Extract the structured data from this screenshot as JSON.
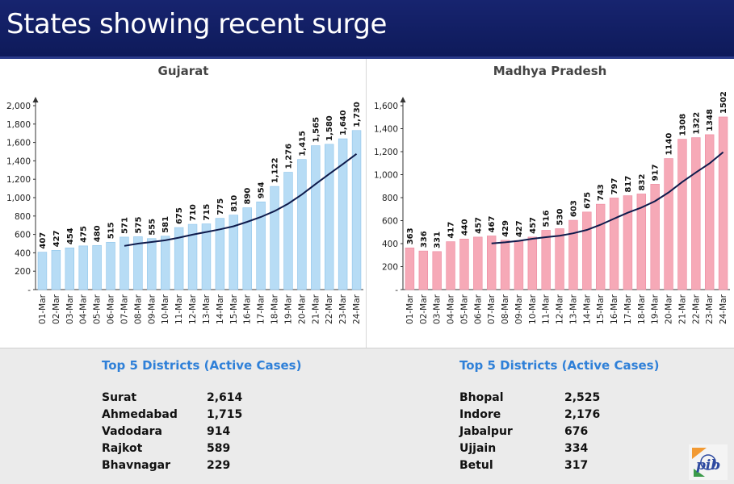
{
  "header": {
    "title": "States showing recent surge"
  },
  "chart_data": [
    {
      "type": "bar",
      "title": "Gujarat",
      "categories": [
        "01-Mar",
        "02-Mar",
        "03-Mar",
        "04-Mar",
        "05-Mar",
        "06-Mar",
        "07-Mar",
        "08-Mar",
        "09-Mar",
        "10-Mar",
        "11-Mar",
        "12-Mar",
        "13-Mar",
        "14-Mar",
        "15-Mar",
        "16-Mar",
        "17-Mar",
        "18-Mar",
        "19-Mar",
        "20-Mar",
        "21-Mar",
        "22-Mar",
        "23-Mar",
        "24-Mar"
      ],
      "values": [
        407,
        427,
        454,
        475,
        480,
        515,
        571,
        575,
        555,
        581,
        675,
        710,
        715,
        775,
        810,
        890,
        954,
        1122,
        1276,
        1415,
        1565,
        1580,
        1640,
        1730
      ],
      "data_labels": [
        "407",
        "427",
        "454",
        "475",
        "480",
        "515",
        "571",
        "575",
        "555",
        "581",
        "675",
        "710",
        "715",
        "775",
        "810",
        "890",
        "954",
        "1,122",
        "1,276",
        "1,415",
        "1,565",
        "1,580",
        "1,640",
        "1,730"
      ],
      "yticks": [
        0,
        200,
        400,
        600,
        800,
        1000,
        1200,
        1400,
        1600,
        1800,
        2000
      ],
      "ytick_labels": [
        "-",
        "200",
        "400",
        "600",
        "800",
        "1,000",
        "1,200",
        "1,400",
        "1,600",
        "1,800",
        "2,000"
      ],
      "ylim": [
        0,
        2000
      ],
      "bar_color": "#b7dcf5",
      "bar_edge": "#8ec4ea",
      "trend": {
        "type": "moving-average",
        "window": 7,
        "color": "#0f1b4c"
      }
    },
    {
      "type": "bar",
      "title": "Madhya Pradesh",
      "categories": [
        "01-Mar",
        "02-Mar",
        "03-Mar",
        "04-Mar",
        "05-Mar",
        "06-Mar",
        "07-Mar",
        "08-Mar",
        "09-Mar",
        "10-Mar",
        "11-Mar",
        "12-Mar",
        "13-Mar",
        "14-Mar",
        "15-Mar",
        "16-Mar",
        "17-Mar",
        "18-Mar",
        "19-Mar",
        "20-Mar",
        "21-Mar",
        "22-Mar",
        "23-Mar",
        "24-Mar"
      ],
      "values": [
        363,
        336,
        331,
        417,
        440,
        457,
        467,
        429,
        427,
        457,
        516,
        530,
        603,
        675,
        743,
        797,
        817,
        832,
        917,
        1140,
        1308,
        1322,
        1348,
        1502
      ],
      "data_labels": [
        "363",
        "336",
        "331",
        "417",
        "440",
        "457",
        "467",
        "429",
        "427",
        "457",
        "516",
        "530",
        "603",
        "675",
        "743",
        "797",
        "817",
        "832",
        "917",
        "1140",
        "1308",
        "1322",
        "1348",
        "1502"
      ],
      "yticks": [
        0,
        200,
        400,
        600,
        800,
        1000,
        1200,
        1400,
        1600
      ],
      "ytick_labels": [
        "-",
        "200",
        "400",
        "600",
        "800",
        "1,000",
        "1,200",
        "1,400",
        "1,600"
      ],
      "ylim": [
        0,
        1600
      ],
      "bar_color": "#f6a9b7",
      "bar_edge": "#ec8aa0",
      "trend": {
        "type": "moving-average",
        "window": 7,
        "color": "#0f1b4c"
      }
    }
  ],
  "districts": [
    {
      "title": "Top 5 Districts (Active Cases)",
      "rows": [
        {
          "name": "Surat",
          "value": "2,614"
        },
        {
          "name": "Ahmedabad",
          "value": "1,715"
        },
        {
          "name": "Vadodara",
          "value": "914"
        },
        {
          "name": "Rajkot",
          "value": "589"
        },
        {
          "name": "Bhavnagar",
          "value": "229"
        }
      ]
    },
    {
      "title": "Top 5 Districts (Active Cases)",
      "rows": [
        {
          "name": "Bhopal",
          "value": "2,525"
        },
        {
          "name": "Indore",
          "value": "2,176"
        },
        {
          "name": "Jabalpur",
          "value": "676"
        },
        {
          "name": "Ujjain",
          "value": "334"
        },
        {
          "name": "Betul",
          "value": "317"
        }
      ]
    }
  ],
  "logo": {
    "text": "pib",
    "icon": "pib-logo-icon"
  }
}
